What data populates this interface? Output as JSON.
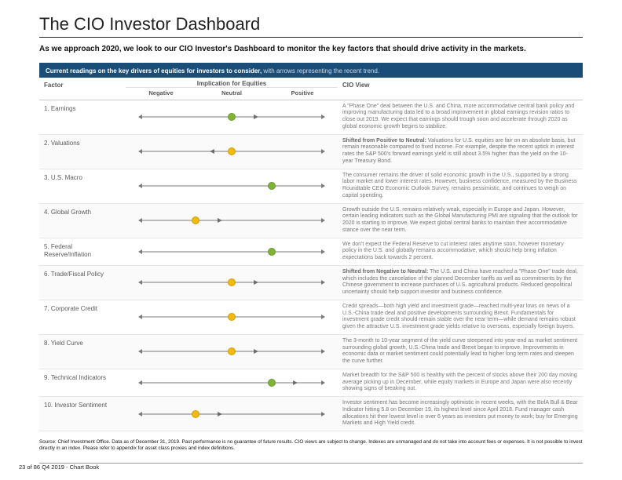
{
  "title": "The CIO Investor Dashboard",
  "subtitle": "As we approach 2020, we look to our CIO Investor's Dashboard to monitor the key factors that should drive activity in the markets.",
  "banner": {
    "strong": "Current readings on the key drivers of equities for investors to consider,",
    "light": " with arrows representing the recent trend."
  },
  "headers": {
    "factor": "Factor",
    "implication": "Implication for Equities",
    "neg": "Negative",
    "neu": "Neutral",
    "pos": "Positive",
    "view": "CIO View"
  },
  "colors": {
    "green": "#7eb338",
    "yellow": "#f2b90f",
    "arrow_dir": "#6d6d6d",
    "track": "#7a7a7a"
  },
  "rows": [
    {
      "factor": "1. Earnings",
      "dot_pos": 0.5,
      "dot_color": "#7eb338",
      "dir": "right",
      "dir_pos": 0.62,
      "view": "A \"Phase One\" deal between the U.S. and China, more accommodative central bank policy and improving manufacturing data led to a broad improvement in global earnings revision ratios to close out 2019. We expect that earnings should trough soon and accelerate through 2020 as global economic growth begins to stabilize."
    },
    {
      "factor": "2. Valuations",
      "dot_pos": 0.5,
      "dot_color": "#f2b90f",
      "dir": "left",
      "dir_pos": 0.38,
      "shift": "Shifted from Positive to Neutral:",
      "view": " Valuations for U.S. equities are fair on an absolute basis, but remain reasonable compared to fixed income. For example, despite the recent uptick in interest rates the S&P 500's forward earnings yield is still about 3.5% higher than the yield on the 10-year Treasury Bond."
    },
    {
      "factor": "3. U.S. Macro",
      "dot_pos": 0.72,
      "dot_color": "#7eb338",
      "dir": null,
      "view": "The consumer remains the driver of solid economic growth in the U.S., supported by a strong labor market and lower interest rates. However, business confidence, measured by the Business Roundtable CEO Economic Outlook Survey, remains pessimistic, and continues to weigh on capital spending."
    },
    {
      "factor": "4. Global Growth",
      "dot_pos": 0.3,
      "dot_color": "#f2b90f",
      "dir": "right",
      "dir_pos": 0.42,
      "view": "Growth outside the U.S. remains relatively weak, especially in Europe and Japan. However, certain leading indicators such as the Global Manufacturing PMI are signaling that the outlook for 2020 is starting to improve. We expect global central banks to maintain their accommodative stance over the near term."
    },
    {
      "factor": "5. Federal Reserve/Inflation",
      "dot_pos": 0.72,
      "dot_color": "#7eb338",
      "dir": null,
      "view": "We don't expect the Federal Reserve to cut interest rates anytime soon, however monetary policy in the U.S. and globally remains accommodative, which should help bring inflation expectations back towards 2 percent."
    },
    {
      "factor": "6. Trade/Fiscal Policy",
      "dot_pos": 0.5,
      "dot_color": "#f2b90f",
      "dir": "right",
      "dir_pos": 0.62,
      "shift": "Shifted from Negative to Neutral:",
      "view": " The U.S. and China have reached a \"Phase One\" trade deal, which includes the cancelation of the planned December tariffs as well as commitments by the Chinese government to increase purchases of U.S. agricultural products. Reduced geopolitical uncertainty should help support investor and business confidence."
    },
    {
      "factor": "7. Corporate Credit",
      "dot_pos": 0.5,
      "dot_color": "#f2b90f",
      "dir": null,
      "view": "Credit spreads—both high yield and investment grade—reached multi-year lows on news of a U.S.-China trade deal and positive developments surrounding Brexit. Fundamentals for investment grade credit should remain stable over the near term—while demand remains robust given the attractive U.S. investment grade yields relative to overseas, especially foreign buyers."
    },
    {
      "factor": "8. Yield Curve",
      "dot_pos": 0.5,
      "dot_color": "#f2b90f",
      "dir": "right",
      "dir_pos": 0.62,
      "view": "The 3-month to 10-year segment of the yield curve steepened into year-end as market sentiment surrounding global growth, U.S.-China trade and Brexit began to improve. Improvements in economic data or market sentiment could potentially lead to higher long term rates and steepen the curve further."
    },
    {
      "factor": "9. Technical Indicators",
      "dot_pos": 0.72,
      "dot_color": "#7eb338",
      "dir": "right",
      "dir_pos": 0.84,
      "view": "Market breadth for the S&P 500 is healthy with the percent of stocks above their 200 day moving average picking up in December, while equity markets in Europe and Japan were also recently showing signs of breaking out."
    },
    {
      "factor": "10. Investor Sentiment",
      "dot_pos": 0.3,
      "dot_color": "#f2b90f",
      "dir": "right",
      "dir_pos": 0.42,
      "view": "Investor sentiment has become increasingly optimistic in recent weeks, with the BofA Bull & Bear Indicator hitting 5.8 on December 19, its highest level since April 2018. Fund manager cash allocations hit their lowest level in over 6 years as investors put money to work; buy for Emerging Markets and High Yield credit."
    }
  ],
  "source": "Source: Chief Investment Office. Data as of December 31, 2019. Past performance is no guarantee of future results. CIO views are subject to change. Indexes are unmanaged and do not take into account fees or expenses. It is not possible to invest directly in an index. Please refer to appendix for asset class proxies and index definitions.",
  "footer": "23 of 86 Q4 2019 - Chart Book"
}
